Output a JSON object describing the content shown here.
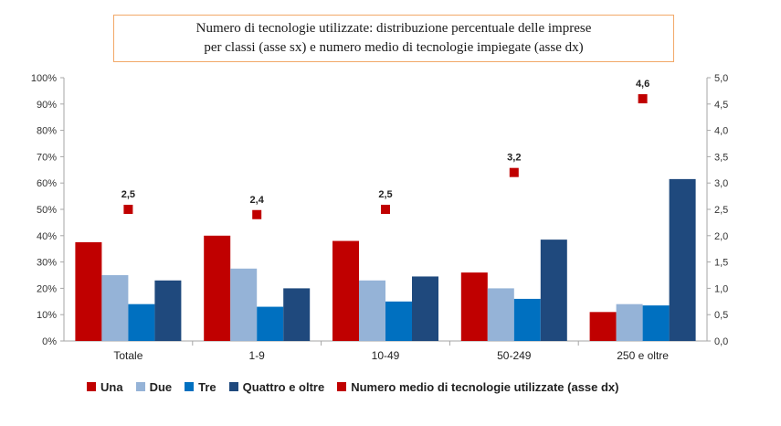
{
  "title": {
    "line1": "Numero di tecnologie utilizzate: distribuzione percentuale delle imprese",
    "line2": "per classi (asse sx) e numero medio di tecnologie impiegate (asse dx)"
  },
  "chart_data": {
    "type": "bar",
    "categories": [
      "Totale",
      "1-9",
      "10-49",
      "50-249",
      "250 e oltre"
    ],
    "series": [
      {
        "name": "Una",
        "color": "#c00000",
        "values": [
          37.5,
          40,
          38,
          26,
          11
        ]
      },
      {
        "name": "Due",
        "color": "#95b3d7",
        "values": [
          25,
          27.5,
          23,
          20,
          14
        ]
      },
      {
        "name": "Tre",
        "color": "#0070c0",
        "values": [
          14,
          13,
          15,
          16,
          13.5
        ]
      },
      {
        "name": "Quattro e oltre",
        "color": "#1f497d",
        "values": [
          23,
          20,
          24.5,
          38.5,
          61.5
        ]
      }
    ],
    "secondary_series": {
      "name": "Numero medio di tecnologie utilizzate (asse dx)",
      "color": "#c00000",
      "marker": "square",
      "values": [
        2.5,
        2.4,
        2.5,
        3.2,
        4.6
      ],
      "labels": [
        "2,5",
        "2,4",
        "2,5",
        "3,2",
        "4,6"
      ]
    },
    "y_left": {
      "range": [
        0,
        100
      ],
      "ticks": [
        "0%",
        "10%",
        "20%",
        "30%",
        "40%",
        "50%",
        "60%",
        "70%",
        "80%",
        "90%",
        "100%"
      ]
    },
    "y_right": {
      "range": [
        0,
        5
      ],
      "ticks": [
        "0,0",
        "0,5",
        "1,0",
        "1,5",
        "2,0",
        "2,5",
        "3,0",
        "3,5",
        "4,0",
        "4,5",
        "5,0"
      ]
    },
    "grid": false,
    "legend_position": "bottom"
  }
}
